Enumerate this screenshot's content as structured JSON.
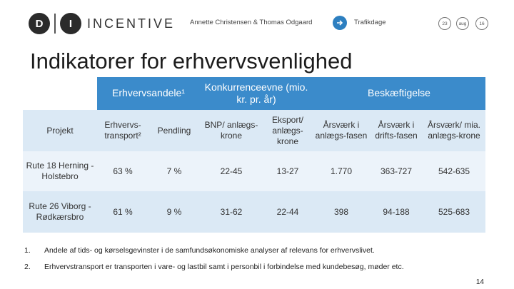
{
  "header": {
    "logo_d": "D",
    "logo_i": "I",
    "logo_text": "INCENTIVE",
    "authors": "Annette Christensen & Thomas Odgaard",
    "section": "Trafikdage",
    "circles": [
      "23",
      "aug",
      "16"
    ]
  },
  "title": "Indikatorer for erhvervsvenlighed",
  "table": {
    "group_headers": {
      "erhvervsandele": "Erhvervsandele¹",
      "konkurrence": "Konkurrenceevne (mio. kr. pr. år)",
      "beskaeftigelse": "Beskæftigelse"
    },
    "columns": [
      "Projekt",
      "Erhvervs-transport²",
      "Pendling",
      "BNP/ anlægs-krone",
      "Eksport/ anlægs-krone",
      "Årsværk i anlægs-fasen",
      "Årsværk i drifts-fasen",
      "Årsværk/ mia. anlægs-krone"
    ],
    "rows": [
      [
        "Rute 18 Herning - Holstebro",
        "63 %",
        "7 %",
        "22-45",
        "13-27",
        "1.770",
        "363-727",
        "542-635"
      ],
      [
        "Rute 26 Viborg - Rødkærsbro",
        "61 %",
        "9 %",
        "31-62",
        "22-44",
        "398",
        "94-188",
        "525-683"
      ]
    ]
  },
  "notes": [
    {
      "num": "1.",
      "text": "Andele af tids- og kørselsgevinster i de samfundsøkonomiske analyser af relevans for erhvervslivet."
    },
    {
      "num": "2.",
      "text": "Erhvervstransport er transporten i vare- og lastbil samt i personbil i forbindelse med kundebesøg, møder etc."
    }
  ],
  "page_number": "14",
  "colors": {
    "header_blue": "#3b8bcb",
    "row_light": "#ecf3fa",
    "row_mid": "#dbe9f5"
  }
}
